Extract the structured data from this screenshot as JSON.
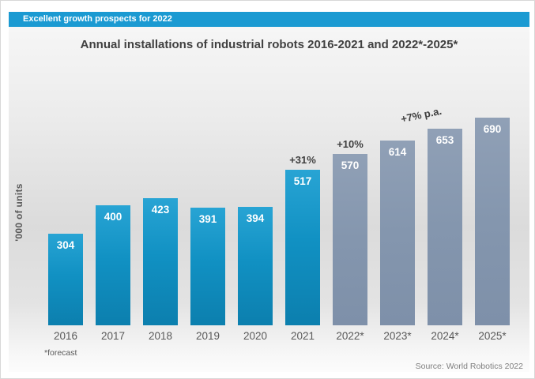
{
  "banner": {
    "label": "Excellent growth prospects for 2022"
  },
  "chart_data": {
    "type": "bar",
    "title": "Annual installations of industrial robots 2016-2021 and 2022*-2025*",
    "ylabel": "'000 of units",
    "xlabel": "",
    "categories": [
      "2016",
      "2017",
      "2018",
      "2019",
      "2020",
      "2021",
      "2022*",
      "2023*",
      "2024*",
      "2025*"
    ],
    "values": [
      304,
      400,
      423,
      391,
      394,
      517,
      570,
      614,
      653,
      690
    ],
    "bar_label_position": "inside-top",
    "bar_label_color": "#ffffff",
    "segments": [
      {
        "name": "actual",
        "from": "2016",
        "to": "2021",
        "color": "#0e8cbe"
      },
      {
        "name": "forecast",
        "from": "2022*",
        "to": "2025*",
        "color": "#8496ae"
      }
    ],
    "annotations": [
      {
        "category": "2021",
        "text": "+31%",
        "rotate_deg": 0,
        "dx": 0,
        "gap": 5
      },
      {
        "category": "2022*",
        "text": "+10%",
        "rotate_deg": 0,
        "dx": 0,
        "gap": 5
      },
      {
        "category": "2024*",
        "text": "+7% p.a.",
        "rotate_deg": -12,
        "dx": -30,
        "gap": 10
      }
    ],
    "ylim": [
      0,
      810
    ],
    "grid": false,
    "legend": "none",
    "footnote": "*forecast",
    "source": "Source: World Robotics 2022"
  }
}
